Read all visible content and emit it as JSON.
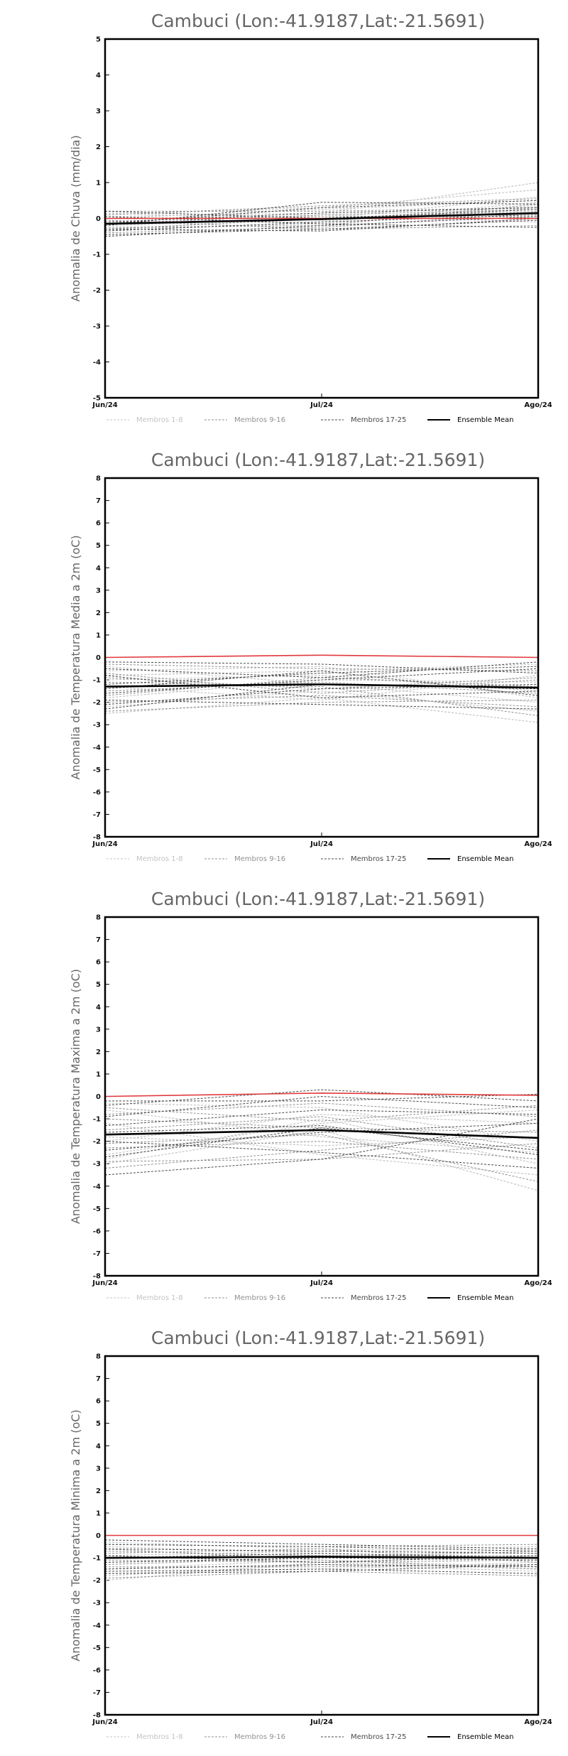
{
  "chart_data": [
    {
      "type": "line",
      "title": "Cambuci (Lon:-41.9187,Lat:-21.5691)",
      "ylabel": "Anomalia de Chuva (mm/dia)",
      "xlabel": "",
      "categories": [
        "Jun/24",
        "Jul/24",
        "Ago/24"
      ],
      "ylim": [
        -5,
        5
      ],
      "yticks": [
        "5",
        "4",
        "3",
        "2",
        "1",
        "0",
        "-1",
        "-2",
        "-3",
        "-4",
        "-5"
      ],
      "legend": [
        "Membros 1-8",
        "Membros 9-16",
        "Membros 17-25",
        "Ensemble Mean"
      ],
      "series": [
        {
          "group": "1-8",
          "values": [
            0.05,
            0.15,
            1.0
          ]
        },
        {
          "group": "1-8",
          "values": [
            -0.2,
            0.0,
            0.6
          ]
        },
        {
          "group": "1-8",
          "values": [
            0.1,
            0.3,
            0.8
          ]
        },
        {
          "group": "1-8",
          "values": [
            -0.1,
            -0.1,
            0.45
          ]
        },
        {
          "group": "1-8",
          "values": [
            -0.3,
            -0.15,
            0.3
          ]
        },
        {
          "group": "1-8",
          "values": [
            0.0,
            0.25,
            0.5
          ]
        },
        {
          "group": "1-8",
          "values": [
            -0.35,
            0.1,
            -0.1
          ]
        },
        {
          "group": "1-8",
          "values": [
            0.15,
            -0.05,
            0.35
          ]
        },
        {
          "group": "9-16",
          "values": [
            -0.15,
            0.1,
            0.25
          ]
        },
        {
          "group": "9-16",
          "values": [
            -0.25,
            -0.2,
            0.4
          ]
        },
        {
          "group": "9-16",
          "values": [
            0.0,
            0.05,
            0.05
          ]
        },
        {
          "group": "9-16",
          "values": [
            -0.4,
            -0.25,
            0.15
          ]
        },
        {
          "group": "9-16",
          "values": [
            0.2,
            0.2,
            0.3
          ]
        },
        {
          "group": "9-16",
          "values": [
            -0.05,
            -0.3,
            -0.2
          ]
        },
        {
          "group": "9-16",
          "values": [
            -0.3,
            0.0,
            0.2
          ]
        },
        {
          "group": "9-16",
          "values": [
            0.1,
            0.35,
            0.55
          ]
        },
        {
          "group": "17-25",
          "values": [
            -0.45,
            -0.3,
            -0.05
          ]
        },
        {
          "group": "17-25",
          "values": [
            -0.2,
            0.45,
            0.4
          ]
        },
        {
          "group": "17-25",
          "values": [
            -0.35,
            -0.1,
            0.1
          ]
        },
        {
          "group": "17-25",
          "values": [
            0.05,
            -0.15,
            -0.25
          ]
        },
        {
          "group": "17-25",
          "values": [
            -0.1,
            0.15,
            0.3
          ]
        },
        {
          "group": "17-25",
          "values": [
            -0.3,
            -0.35,
            0.0
          ]
        },
        {
          "group": "17-25",
          "values": [
            0.2,
            0.0,
            0.25
          ]
        },
        {
          "group": "17-25",
          "values": [
            -0.5,
            -0.2,
            0.05
          ]
        },
        {
          "group": "17-25",
          "values": [
            -0.15,
            0.3,
            0.5
          ]
        },
        {
          "group": "red",
          "values": [
            0.0,
            0.0,
            0.0
          ]
        },
        {
          "group": "mean",
          "values": [
            -0.15,
            -0.02,
            0.15
          ]
        }
      ]
    },
    {
      "type": "line",
      "title": "Cambuci (Lon:-41.9187,Lat:-21.5691)",
      "ylabel": "Anomalia de Temperatura Media a 2m (oC)",
      "xlabel": "",
      "categories": [
        "Jun/24",
        "Jul/24",
        "Ago/24"
      ],
      "ylim": [
        -8,
        8
      ],
      "yticks": [
        "8",
        "7",
        "6",
        "5",
        "4",
        "3",
        "2",
        "1",
        "0",
        "-1",
        "-2",
        "-3",
        "-4",
        "-5",
        "-6",
        "-7",
        "-8"
      ],
      "legend": [
        "Membros 1-8",
        "Membros 9-16",
        "Membros 17-25",
        "Ensemble Mean"
      ],
      "series": [
        {
          "group": "1-8",
          "values": [
            -2.5,
            -1.8,
            -2.9
          ]
        },
        {
          "group": "1-8",
          "values": [
            -1.0,
            -0.8,
            -1.5
          ]
        },
        {
          "group": "1-8",
          "values": [
            -0.4,
            -1.2,
            -2.0
          ]
        },
        {
          "group": "1-8",
          "values": [
            -1.8,
            -1.0,
            -1.1
          ]
        },
        {
          "group": "1-8",
          "values": [
            -0.8,
            -0.6,
            -0.3
          ]
        },
        {
          "group": "1-8",
          "values": [
            -2.2,
            -1.5,
            -2.4
          ]
        },
        {
          "group": "1-8",
          "values": [
            -1.3,
            -1.9,
            -0.8
          ]
        },
        {
          "group": "1-8",
          "values": [
            -0.6,
            -0.4,
            -1.8
          ]
        },
        {
          "group": "9-16",
          "values": [
            -1.5,
            -1.1,
            -1.6
          ]
        },
        {
          "group": "9-16",
          "values": [
            -0.9,
            -1.4,
            -0.9
          ]
        },
        {
          "group": "9-16",
          "values": [
            -2.0,
            -1.7,
            -2.2
          ]
        },
        {
          "group": "9-16",
          "values": [
            -0.3,
            -0.5,
            -0.6
          ]
        },
        {
          "group": "9-16",
          "values": [
            -1.7,
            -0.9,
            -1.3
          ]
        },
        {
          "group": "9-16",
          "values": [
            -2.4,
            -2.0,
            -1.9
          ]
        },
        {
          "group": "9-16",
          "values": [
            -1.1,
            -1.3,
            -2.6
          ]
        },
        {
          "group": "9-16",
          "values": [
            -0.7,
            -1.6,
            -1.0
          ]
        },
        {
          "group": "17-25",
          "values": [
            -1.2,
            -0.7,
            -0.4
          ]
        },
        {
          "group": "17-25",
          "values": [
            -2.3,
            -1.2,
            -1.4
          ]
        },
        {
          "group": "17-25",
          "values": [
            -0.5,
            -0.9,
            -0.2
          ]
        },
        {
          "group": "17-25",
          "values": [
            -1.9,
            -2.1,
            -2.3
          ]
        },
        {
          "group": "17-25",
          "values": [
            -1.4,
            -0.6,
            -1.7
          ]
        },
        {
          "group": "17-25",
          "values": [
            -0.2,
            -0.3,
            -0.7
          ]
        },
        {
          "group": "17-25",
          "values": [
            -2.1,
            -1.4,
            -1.2
          ]
        },
        {
          "group": "17-25",
          "values": [
            -0.8,
            -1.8,
            -1.5
          ]
        },
        {
          "group": "17-25",
          "values": [
            -1.6,
            -1.0,
            -0.5
          ]
        },
        {
          "group": "red",
          "values": [
            0.0,
            0.1,
            0.0
          ]
        },
        {
          "group": "mean",
          "values": [
            -1.3,
            -1.2,
            -1.35
          ]
        }
      ]
    },
    {
      "type": "line",
      "title": "Cambuci (Lon:-41.9187,Lat:-21.5691)",
      "ylabel": "Anomalia de Temperatura Maxima a 2m (oC)",
      "xlabel": "",
      "categories": [
        "Jun/24",
        "Jul/24",
        "Ago/24"
      ],
      "ylim": [
        -8,
        8
      ],
      "yticks": [
        "8",
        "7",
        "6",
        "5",
        "4",
        "3",
        "2",
        "1",
        "0",
        "-1",
        "-2",
        "-3",
        "-4",
        "-5",
        "-6",
        "-7",
        "-8"
      ],
      "legend": [
        "Membros 1-8",
        "Membros 9-16",
        "Membros 17-25",
        "Ensemble Mean"
      ],
      "series": [
        {
          "group": "1-8",
          "values": [
            -3.0,
            -1.5,
            -4.2
          ]
        },
        {
          "group": "1-8",
          "values": [
            -0.6,
            -1.8,
            -2.5
          ]
        },
        {
          "group": "1-8",
          "values": [
            -2.0,
            -0.8,
            -1.2
          ]
        },
        {
          "group": "1-8",
          "values": [
            -1.2,
            -2.6,
            -3.5
          ]
        },
        {
          "group": "1-8",
          "values": [
            -2.6,
            -1.2,
            -0.6
          ]
        },
        {
          "group": "1-8",
          "values": [
            -0.3,
            -0.5,
            -2.0
          ]
        },
        {
          "group": "1-8",
          "values": [
            -1.8,
            -2.2,
            -1.8
          ]
        },
        {
          "group": "1-8",
          "values": [
            -2.8,
            -1.0,
            -3.0
          ]
        },
        {
          "group": "9-16",
          "values": [
            -1.0,
            -1.4,
            -1.6
          ]
        },
        {
          "group": "9-16",
          "values": [
            -2.3,
            -2.0,
            -2.8
          ]
        },
        {
          "group": "9-16",
          "values": [
            -0.8,
            -0.3,
            -0.9
          ]
        },
        {
          "group": "9-16",
          "values": [
            -3.2,
            -2.4,
            -1.5
          ]
        },
        {
          "group": "9-16",
          "values": [
            -1.5,
            -0.9,
            -2.3
          ]
        },
        {
          "group": "9-16",
          "values": [
            -2.1,
            -1.7,
            -3.8
          ]
        },
        {
          "group": "9-16",
          "values": [
            -0.5,
            -1.1,
            -0.4
          ]
        },
        {
          "group": "9-16",
          "values": [
            -2.9,
            -2.8,
            -2.1
          ]
        },
        {
          "group": "17-25",
          "values": [
            -3.5,
            -2.8,
            -1.0
          ]
        },
        {
          "group": "17-25",
          "values": [
            -0.4,
            0.3,
            -0.2
          ]
        },
        {
          "group": "17-25",
          "values": [
            -1.6,
            -1.3,
            -2.6
          ]
        },
        {
          "group": "17-25",
          "values": [
            -2.4,
            -1.6,
            -1.2
          ]
        },
        {
          "group": "17-25",
          "values": [
            -0.9,
            0.0,
            -0.5
          ]
        },
        {
          "group": "17-25",
          "values": [
            -2.0,
            -2.5,
            -3.2
          ]
        },
        {
          "group": "17-25",
          "values": [
            -1.3,
            -0.6,
            -0.8
          ]
        },
        {
          "group": "17-25",
          "values": [
            -2.7,
            -1.4,
            -2.4
          ]
        },
        {
          "group": "17-25",
          "values": [
            -0.2,
            -0.2,
            0.1
          ]
        },
        {
          "group": "red",
          "values": [
            0.0,
            0.15,
            0.05
          ]
        },
        {
          "group": "mean",
          "values": [
            -1.7,
            -1.5,
            -1.85
          ]
        }
      ]
    },
    {
      "type": "line",
      "title": "Cambuci (Lon:-41.9187,Lat:-21.5691)",
      "ylabel": "Anomalia de Temperatura Minima a 2m (oC)",
      "xlabel": "",
      "categories": [
        "Jun/24",
        "Jul/24",
        "Ago/24"
      ],
      "ylim": [
        -8,
        8
      ],
      "yticks": [
        "8",
        "7",
        "6",
        "5",
        "4",
        "3",
        "2",
        "1",
        "0",
        "-1",
        "-2",
        "-3",
        "-4",
        "-5",
        "-6",
        "-7",
        "-8"
      ],
      "legend": [
        "Membros 1-8",
        "Membros 9-16",
        "Membros 17-25",
        "Ensemble Mean"
      ],
      "series": [
        {
          "group": "1-8",
          "values": [
            -2.0,
            -1.2,
            -1.5
          ]
        },
        {
          "group": "1-8",
          "values": [
            -0.5,
            -0.8,
            -1.0
          ]
        },
        {
          "group": "1-8",
          "values": [
            -1.2,
            -1.0,
            -0.6
          ]
        },
        {
          "group": "1-8",
          "values": [
            -1.7,
            -1.5,
            -1.2
          ]
        },
        {
          "group": "1-8",
          "values": [
            -0.3,
            -0.6,
            -0.8
          ]
        },
        {
          "group": "1-8",
          "values": [
            -1.5,
            -1.1,
            -1.4
          ]
        },
        {
          "group": "1-8",
          "values": [
            -0.9,
            -0.7,
            -0.5
          ]
        },
        {
          "group": "1-8",
          "values": [
            -1.8,
            -1.3,
            -1.6
          ]
        },
        {
          "group": "9-16",
          "values": [
            -0.7,
            -0.9,
            -0.9
          ]
        },
        {
          "group": "9-16",
          "values": [
            -1.4,
            -1.4,
            -1.3
          ]
        },
        {
          "group": "9-16",
          "values": [
            -0.4,
            -0.5,
            -0.4
          ]
        },
        {
          "group": "9-16",
          "values": [
            -1.1,
            -1.2,
            -1.1
          ]
        },
        {
          "group": "9-16",
          "values": [
            -1.9,
            -1.6,
            -1.8
          ]
        },
        {
          "group": "9-16",
          "values": [
            -0.8,
            -0.6,
            -1.2
          ]
        },
        {
          "group": "9-16",
          "values": [
            -1.3,
            -1.0,
            -0.7
          ]
        },
        {
          "group": "9-16",
          "values": [
            -0.6,
            -1.1,
            -1.5
          ]
        },
        {
          "group": "17-25",
          "values": [
            -1.6,
            -1.5,
            -1.7
          ]
        },
        {
          "group": "17-25",
          "values": [
            -0.2,
            -0.4,
            -0.6
          ]
        },
        {
          "group": "17-25",
          "values": [
            -1.0,
            -0.8,
            -1.0
          ]
        },
        {
          "group": "17-25",
          "values": [
            -1.5,
            -1.3,
            -1.4
          ]
        },
        {
          "group": "17-25",
          "values": [
            -0.6,
            -0.7,
            -0.8
          ]
        },
        {
          "group": "17-25",
          "values": [
            -1.2,
            -1.0,
            -1.1
          ]
        },
        {
          "group": "17-25",
          "values": [
            -0.9,
            -1.2,
            -0.9
          ]
        },
        {
          "group": "17-25",
          "values": [
            -1.7,
            -1.6,
            -1.3
          ]
        },
        {
          "group": "17-25",
          "values": [
            -0.4,
            -0.5,
            -0.7
          ]
        },
        {
          "group": "red",
          "values": [
            0.0,
            0.0,
            0.0
          ]
        },
        {
          "group": "mean",
          "values": [
            -1.0,
            -0.95,
            -1.0
          ]
        }
      ]
    }
  ],
  "colors": {
    "members_1_8": "#c4c4c4",
    "members_9_16": "#909090",
    "members_17_25": "#4a4a4a",
    "ensemble_mean": "#000000",
    "observed": "#e0393c"
  }
}
